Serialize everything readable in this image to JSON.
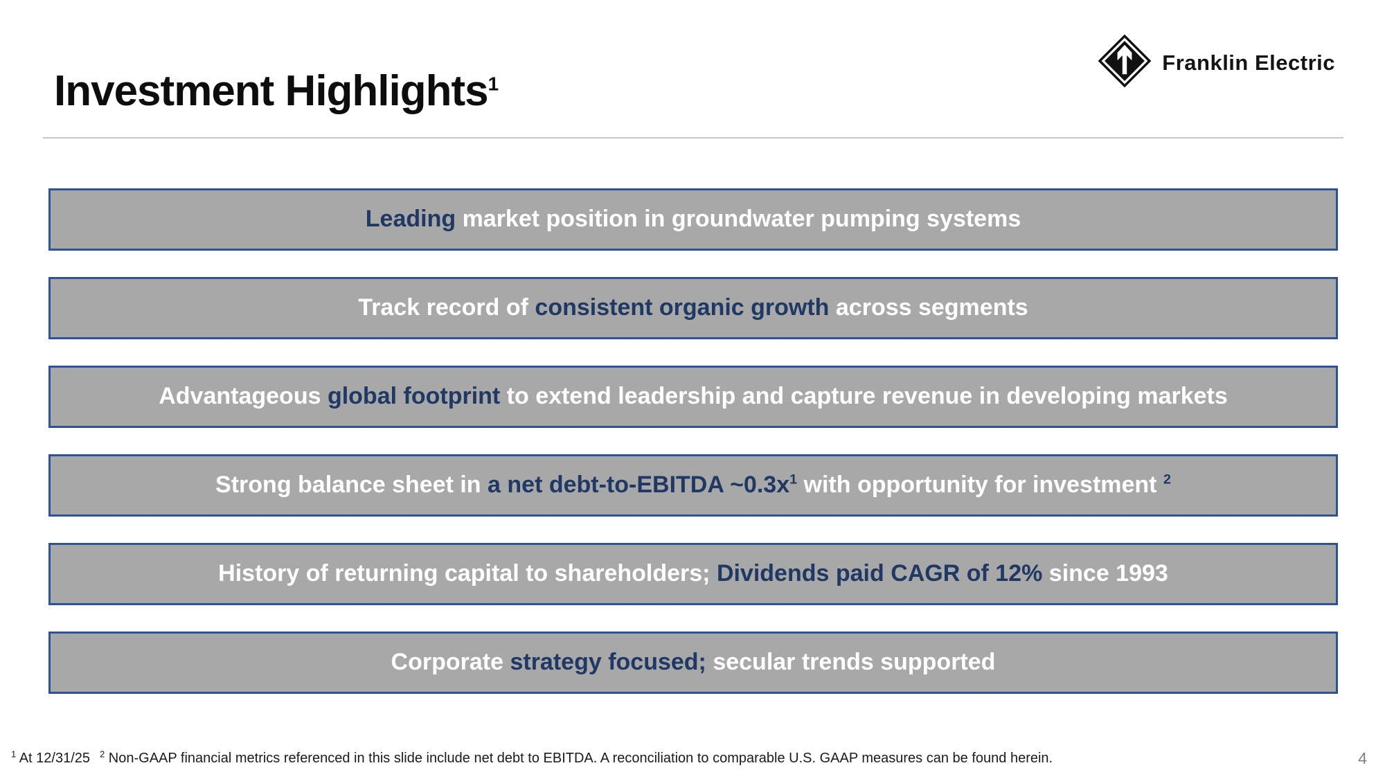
{
  "header": {
    "title": "Investment Highlights",
    "title_superscript": "1"
  },
  "logo": {
    "text": "Franklin Electric",
    "icon": "diamond-arrow-logo"
  },
  "bars": [
    {
      "segments": [
        {
          "text": "Leading ",
          "em": true
        },
        {
          "text": "market position in groundwater pumping systems",
          "em": false
        }
      ]
    },
    {
      "segments": [
        {
          "text": "Track record of ",
          "em": false
        },
        {
          "text": "consistent organic growth ",
          "em": true
        },
        {
          "text": "across segments",
          "em": false
        }
      ]
    },
    {
      "segments": [
        {
          "text": "Advantageous ",
          "em": false
        },
        {
          "text": "global footprint ",
          "em": true
        },
        {
          "text": "to extend leadership and capture revenue in developing markets",
          "em": false
        }
      ]
    },
    {
      "segments": [
        {
          "text": "Strong balance sheet in ",
          "em": false
        },
        {
          "text": "a net debt-to-EBITDA ~0.3x",
          "em": true
        },
        {
          "text": "1",
          "em": true,
          "sup": true
        },
        {
          "text": " with opportunity for investment ",
          "em": false
        },
        {
          "text": "2",
          "em": true,
          "sup": true
        }
      ]
    },
    {
      "segments": [
        {
          "text": "History of returning capital to shareholders; ",
          "em": false
        },
        {
          "text": "Dividends paid CAGR of 12% ",
          "em": true
        },
        {
          "text": "since 1993",
          "em": false
        }
      ]
    },
    {
      "segments": [
        {
          "text": "Corporate ",
          "em": false
        },
        {
          "text": "strategy focused; ",
          "em": true
        },
        {
          "text": "secular trends supported",
          "em": false
        }
      ]
    }
  ],
  "footnotes": [
    {
      "marker": "1",
      "text": "At 12/31/25"
    },
    {
      "marker": "2",
      "text": "Non-GAAP financial metrics referenced in this slide include net debt to EBITDA. A reconciliation to comparable U.S. GAAP measures can be found herein."
    }
  ],
  "page_number": "4",
  "colors": {
    "bar_background": "#a8a8a8",
    "bar_border": "#2e5294",
    "emphasis_navy": "#1f3864",
    "bar_text_white": "#ffffff"
  }
}
